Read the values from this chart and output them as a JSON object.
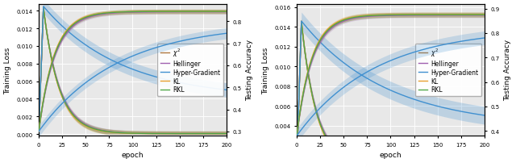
{
  "left_plot": {
    "xlabel": "epoch",
    "ylabel_left": "Training Loss",
    "ylabel_right": "Testing Accuracy",
    "xlim": [
      0,
      200
    ],
    "ylim_left": [
      -0.0002,
      0.0148
    ],
    "ylim_right": [
      0.28,
      0.88
    ],
    "yticks_left": [
      0.0,
      0.002,
      0.004,
      0.006,
      0.008,
      0.01,
      0.012,
      0.014
    ],
    "yticks_right": [
      0.3,
      0.4,
      0.5,
      0.6,
      0.7,
      0.8
    ],
    "xticks": [
      0,
      25,
      50,
      75,
      100,
      125,
      150,
      175,
      200
    ]
  },
  "right_plot": {
    "xlabel": "epoch",
    "ylabel_left": "Training Loss",
    "ylabel_right": "Testing Accuracy",
    "xlim": [
      0,
      200
    ],
    "ylim_left": [
      0.003,
      0.01635
    ],
    "ylim_right": [
      0.38,
      0.92
    ],
    "yticks_left": [
      0.004,
      0.006,
      0.008,
      0.01,
      0.012,
      0.014,
      0.016
    ],
    "yticks_right": [
      0.4,
      0.5,
      0.6,
      0.7,
      0.8,
      0.9
    ],
    "xticks": [
      0,
      25,
      50,
      75,
      100,
      125,
      150,
      175,
      200
    ]
  },
  "series": {
    "chi2": {
      "label": "$\\chi^2$",
      "color": "#b07840"
    },
    "hellinger": {
      "label": "Hellinger",
      "color": "#a060b0"
    },
    "hyper_gradient": {
      "label": "Hyper-Gradient",
      "color": "#4090d0"
    },
    "kl": {
      "label": "KL",
      "color": "#e8a030"
    },
    "rkl": {
      "label": "RKL",
      "color": "#50a848"
    }
  },
  "lw": 1.0,
  "legend_fontsize": 5.5,
  "axis_fontsize": 6.5,
  "tick_fontsize": 5.0,
  "bg_color": "#e8e8e8"
}
